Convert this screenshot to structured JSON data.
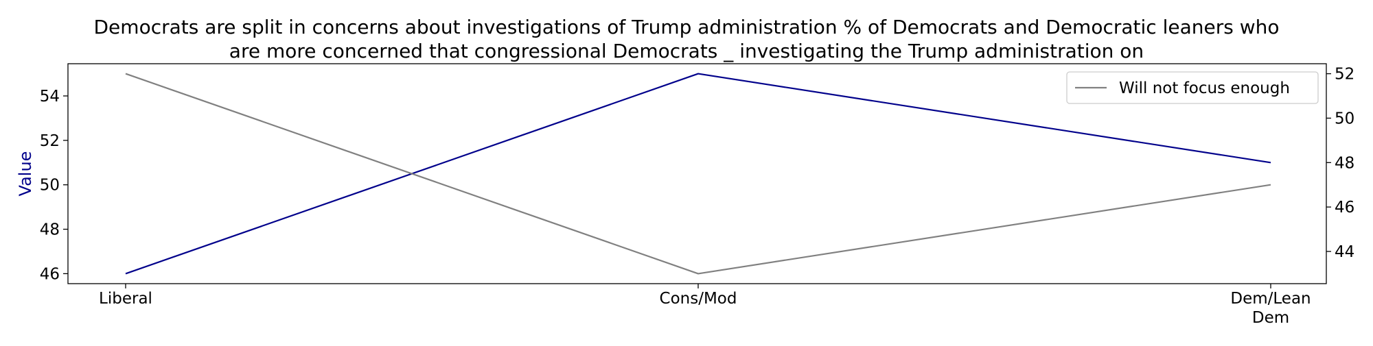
{
  "chart_data": {
    "type": "line",
    "title": "Democrats are split in concerns about investigations of Trump administration % of Democrats and Democratic leaners who are more concerned that congressional Democrats _ investigating the Trump administration on",
    "title_lines": [
      "Democrats are split in concerns about investigations of Trump administration % of Democrats and Democratic leaners who",
      "are more concerned that congressional Democrats _ investigating the Trump administration on"
    ],
    "categories": [
      "Liberal",
      "Cons/Mod",
      "Dem/Lean Dem"
    ],
    "category_lines": [
      [
        "Liberal"
      ],
      [
        "Cons/Mod"
      ],
      [
        "Dem/Lean",
        "Dem"
      ]
    ],
    "ylabel": "Value",
    "ylabel_color": "#00008b",
    "grid": false,
    "legend_position": "top-right",
    "series": [
      {
        "values": [
          46,
          55,
          51
        ],
        "color": "#00008b",
        "axis": "left"
      },
      {
        "name": "Will not focus enough",
        "values": [
          52,
          43,
          47
        ],
        "color": "#808080",
        "axis": "right"
      }
    ],
    "y_left": {
      "ylim": [
        45.55,
        55.45
      ],
      "ticks": [
        46,
        48,
        50,
        52,
        54
      ]
    },
    "y_right": {
      "ylim": [
        42.55,
        52.45
      ],
      "ticks": [
        44,
        46,
        48,
        50,
        52
      ]
    }
  }
}
